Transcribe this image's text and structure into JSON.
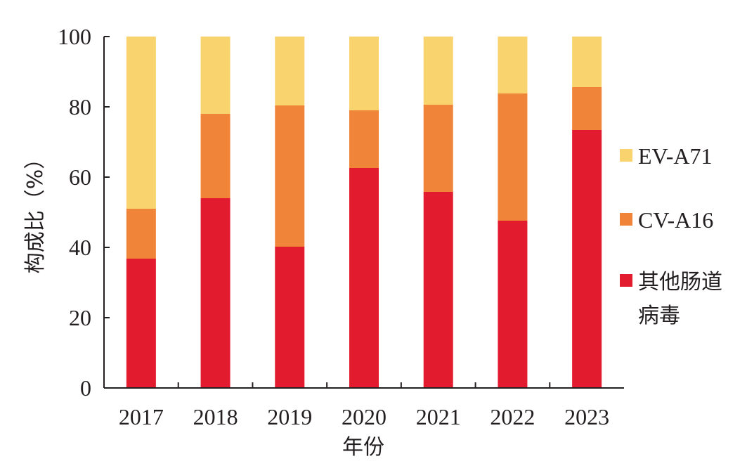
{
  "chart_data": {
    "type": "bar",
    "stacked": true,
    "categories": [
      "2017",
      "2018",
      "2019",
      "2020",
      "2021",
      "2022",
      "2023"
    ],
    "series": [
      {
        "name": "其他肠道病毒",
        "legend_lines": [
          "其他肠道",
          "病毒"
        ],
        "color": "#e31b2f",
        "values": [
          36.8,
          54.0,
          40.2,
          62.6,
          55.8,
          47.6,
          73.4
        ]
      },
      {
        "name": "CV-A16",
        "color": "#f0853a",
        "values": [
          14.2,
          24.0,
          40.2,
          16.4,
          24.8,
          36.2,
          12.2
        ]
      },
      {
        "name": "EV-A71",
        "color": "#f9d46e",
        "values": [
          49.0,
          22.0,
          19.6,
          21.0,
          19.4,
          16.2,
          14.4
        ]
      }
    ],
    "xlabel": "年份",
    "ylabel": "构成比（%）",
    "ylim": [
      0,
      100
    ],
    "yticks": [
      "0",
      "20",
      "40",
      "60",
      "80",
      "100"
    ],
    "grid": false,
    "legend_position": "right"
  }
}
